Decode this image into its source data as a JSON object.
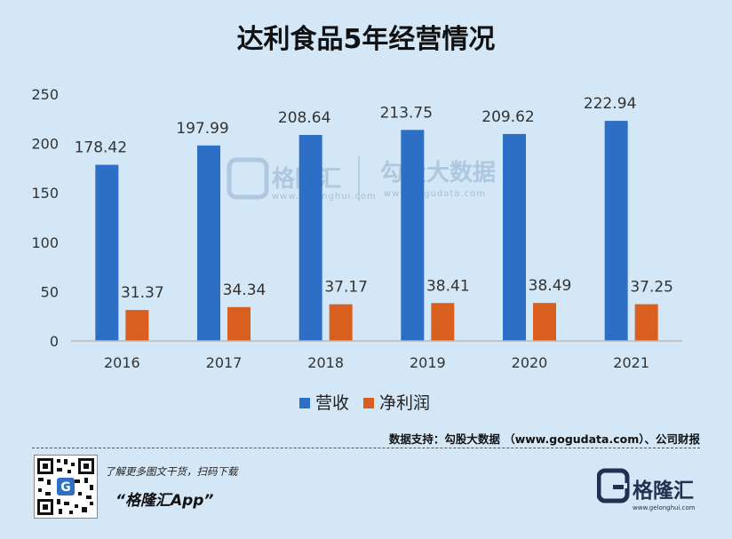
{
  "chart_data": {
    "type": "bar",
    "title": "达利食品5年经营情况",
    "categories": [
      "2016",
      "2017",
      "2018",
      "2019",
      "2020",
      "2021"
    ],
    "series": [
      {
        "name": "营收",
        "values": [
          178.42,
          197.99,
          208.64,
          213.75,
          209.62,
          222.94
        ],
        "labels": [
          "178.42",
          "197.99",
          "208.64",
          "213.75",
          "209.62",
          "222.94"
        ],
        "color": "#2e6fc6"
      },
      {
        "name": "净利润",
        "values": [
          31.37,
          34.34,
          37.17,
          38.41,
          38.49,
          37.25
        ],
        "labels": [
          "31.37",
          "34.34",
          "37.17",
          "38.41",
          "38.49",
          "37.25"
        ],
        "color": "#d95f1e"
      }
    ],
    "ylim": [
      0,
      250
    ],
    "yticks": [
      "0",
      "50",
      "100",
      "150",
      "200",
      "250"
    ],
    "xlabel": "",
    "ylabel": "",
    "grid": false,
    "legend_position": "bottom"
  },
  "watermark": {
    "brand": "格隆汇",
    "brand_url": "www.gelonghui.com",
    "data_brand": "勾股大数据",
    "data_url": "www.gogudata.com"
  },
  "footer": {
    "source": "数据支持：勾股大数据 （www.gogudata.com）、公司财报",
    "promo": "了解更多图文干货，扫码下载",
    "app_name": "“格隆汇App”",
    "logo_text": "格隆汇",
    "logo_url": "www.gelonghui.com"
  }
}
